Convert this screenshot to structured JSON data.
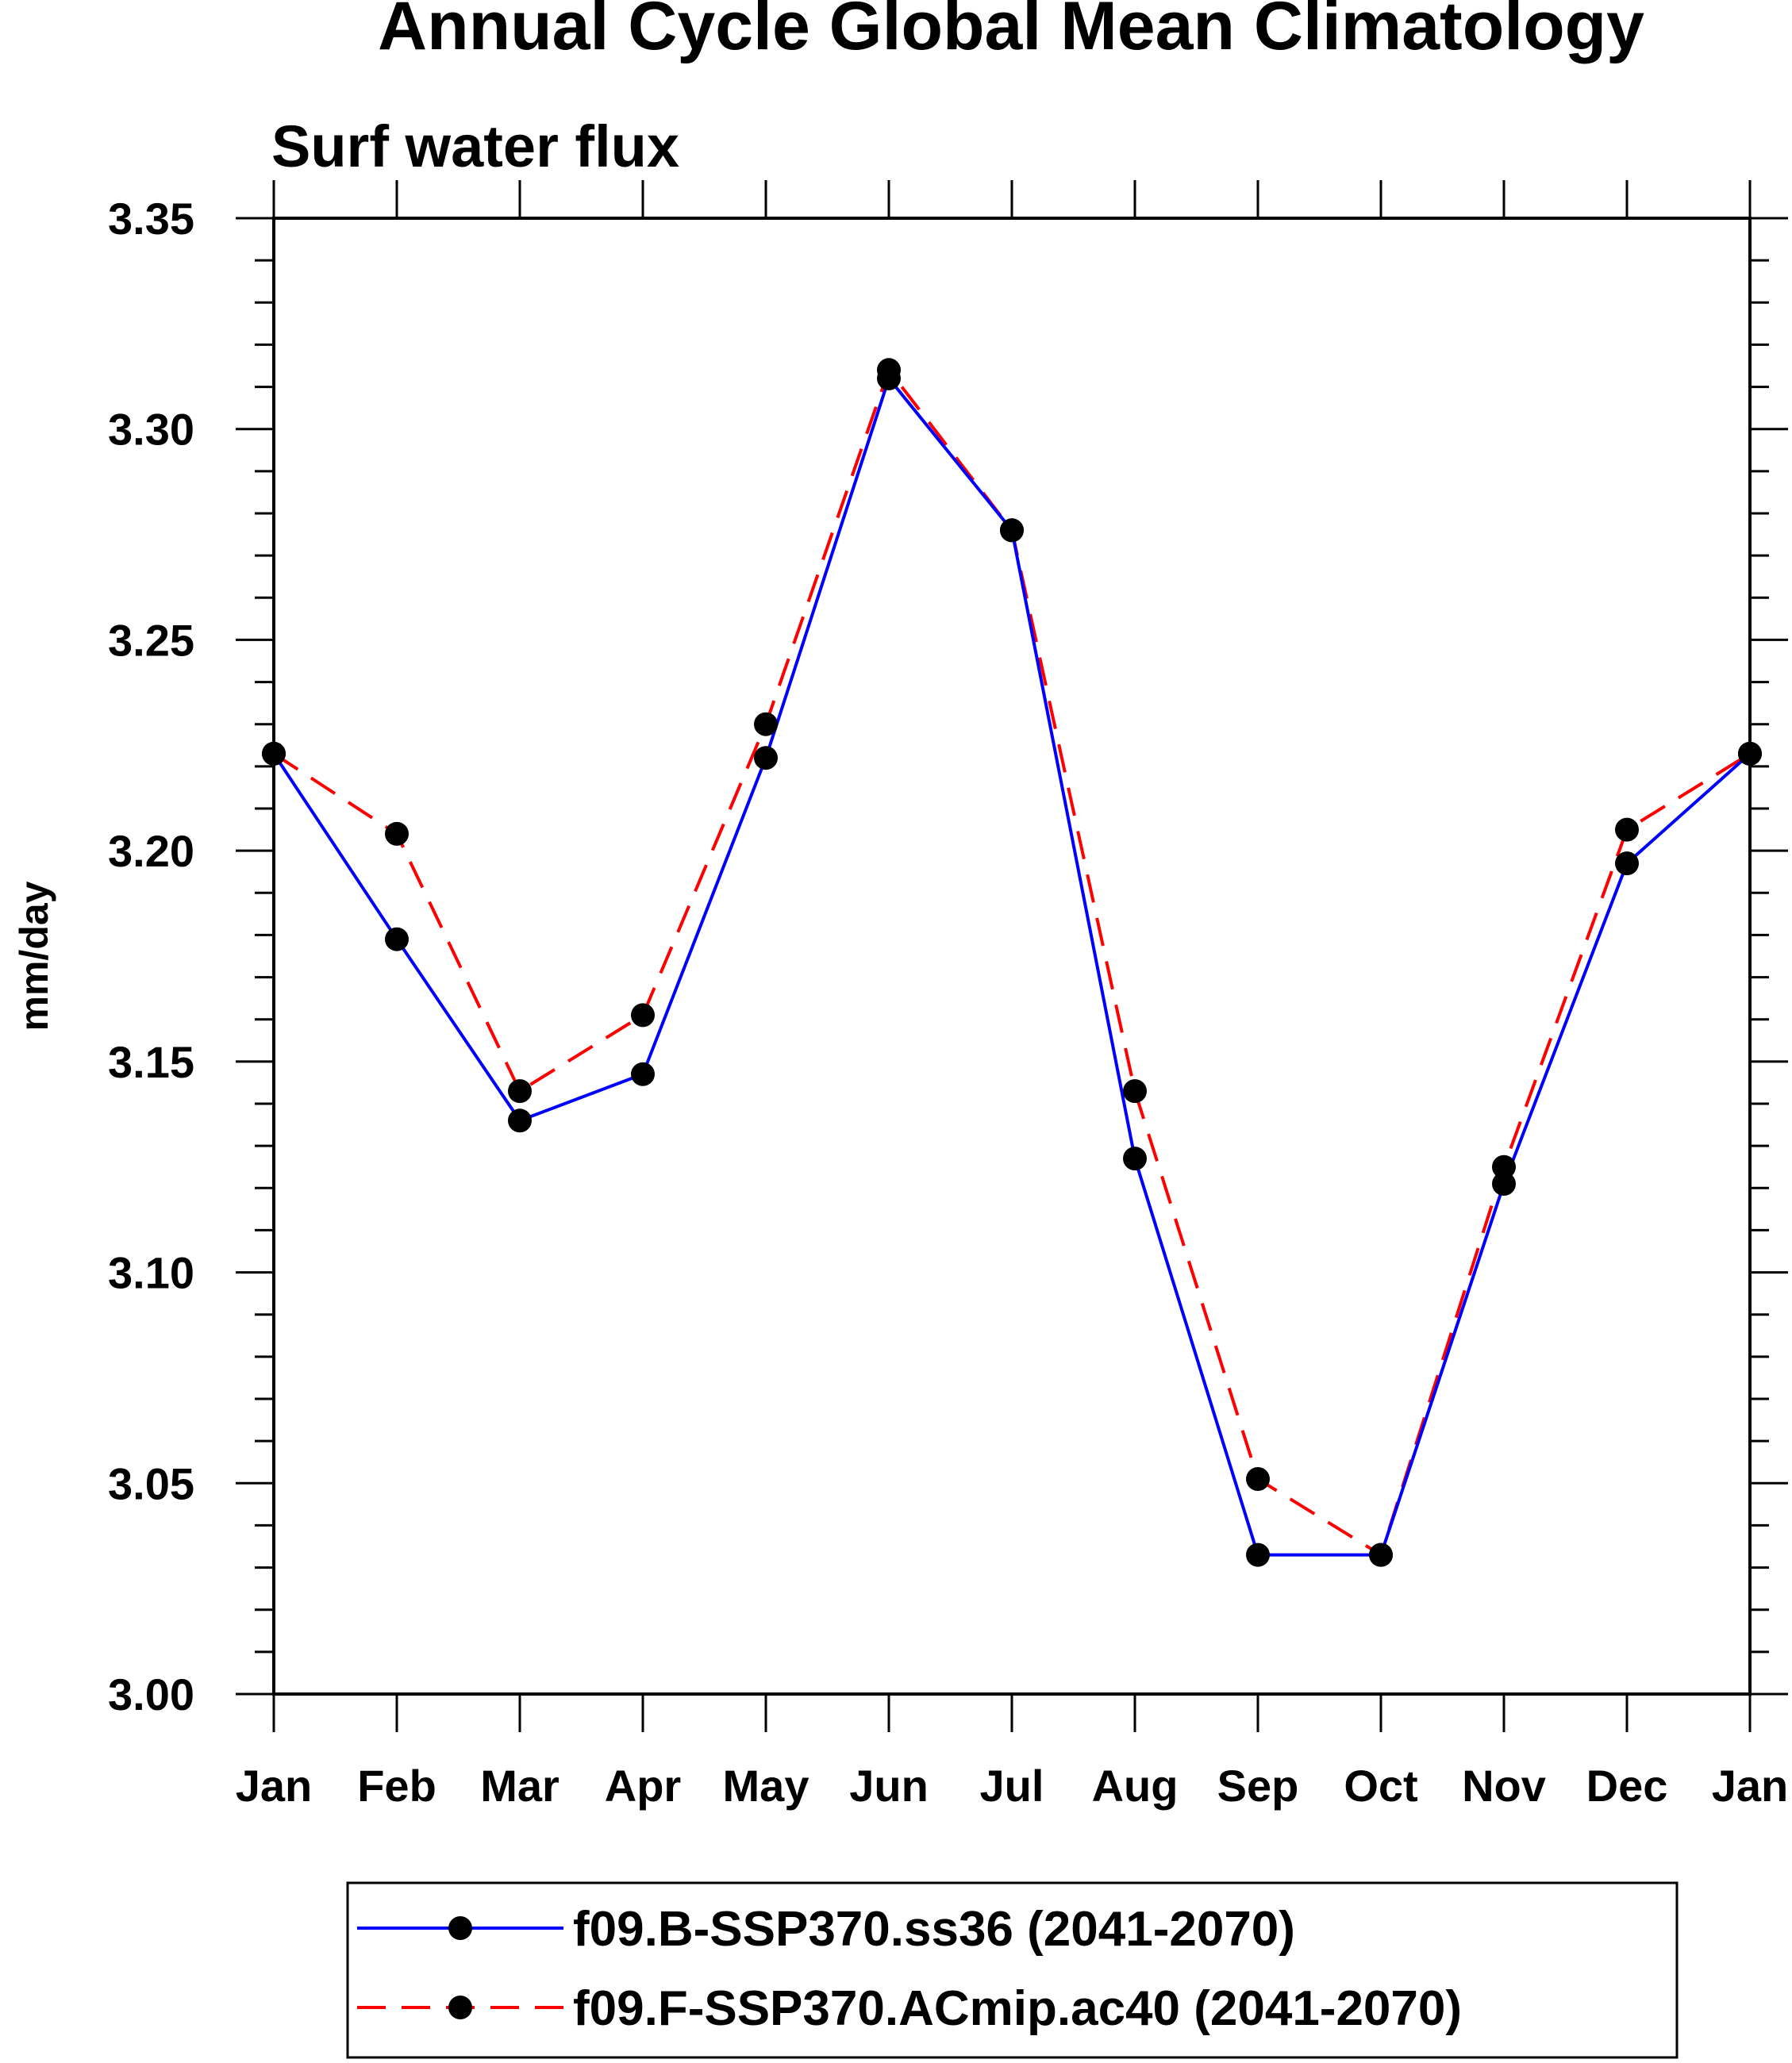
{
  "chart_data": {
    "type": "line",
    "title": "Annual Cycle Global Mean Climatology",
    "subtitle": "Surf water flux",
    "xlabel": "",
    "ylabel": "mm/day",
    "ylim": [
      3.0,
      3.35
    ],
    "ytick_labels": [
      "3.00",
      "3.05",
      "3.10",
      "3.15",
      "3.20",
      "3.25",
      "3.30",
      "3.35"
    ],
    "categories": [
      "Jan",
      "Feb",
      "Mar",
      "Apr",
      "May",
      "Jun",
      "Jul",
      "Aug",
      "Sep",
      "Oct",
      "Nov",
      "Dec",
      "Jan"
    ],
    "series": [
      {
        "name": "f09.B-SSP370.ss36 (2041-2070)",
        "color": "#0000ff",
        "style": "solid",
        "marker": "circle",
        "values": [
          3.223,
          3.179,
          3.136,
          3.147,
          3.222,
          3.312,
          3.276,
          3.127,
          3.033,
          3.033,
          3.121,
          3.197,
          3.223
        ]
      },
      {
        "name": "f09.F-SSP370.ACmip.ac40 (2041-2070)",
        "color": "#ff0000",
        "style": "dashed",
        "marker": "circle",
        "values": [
          3.223,
          3.204,
          3.143,
          3.161,
          3.23,
          3.314,
          3.276,
          3.143,
          3.051,
          3.033,
          3.125,
          3.205,
          3.223
        ]
      }
    ],
    "legend_position": "bottom"
  }
}
